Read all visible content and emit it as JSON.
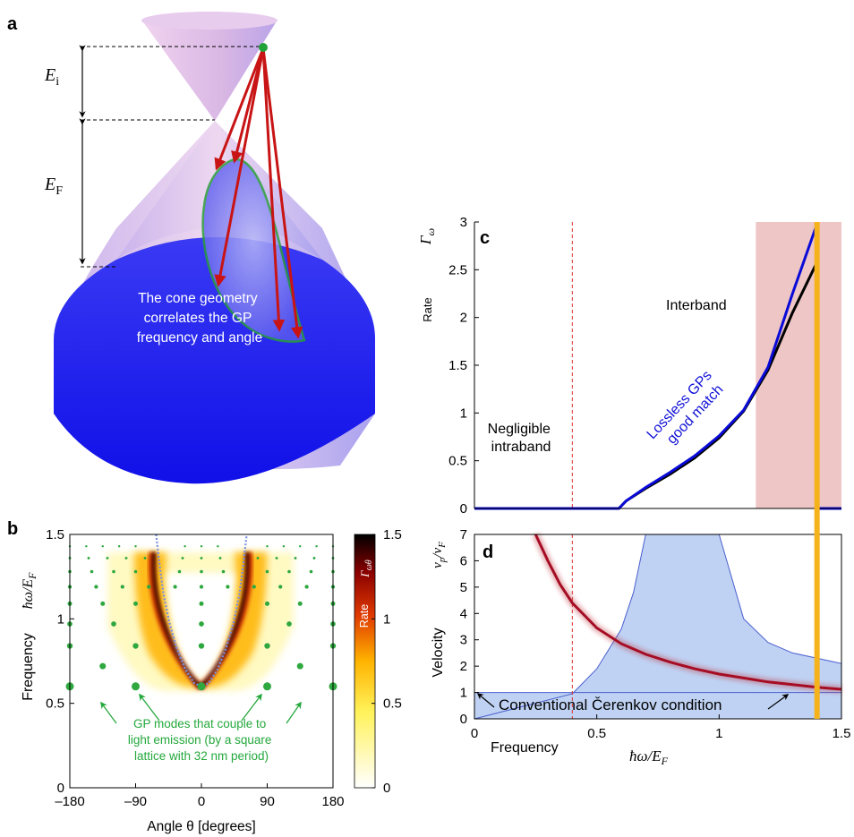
{
  "panel_labels": {
    "a": "a",
    "b": "b",
    "c": "c",
    "d": "d"
  },
  "panel_a": {
    "energy_initial": "E",
    "energy_initial_sub": "i",
    "energy_fermi": "E",
    "energy_fermi_sub": "F",
    "cone_text": [
      "The cone geometry",
      "correlates the GP",
      "frequency and angle"
    ],
    "colors": {
      "cone_upper": "#e7c9ea",
      "cone_lower": "#1c1cf0",
      "arrows": "#d01818",
      "ellipse": "#22a33a",
      "point": "#22a33a"
    }
  },
  "chart_data": [
    {
      "id": "b",
      "type": "heatmap",
      "title": "",
      "xlabel": "Angle θ [degrees]",
      "ylabel_top": "ħω/E",
      "ylabel_top_sub": "F",
      "ylabel_side": "Frequency",
      "xlim": [
        -180,
        180
      ],
      "ylim": [
        0,
        1.5
      ],
      "xticks": [
        -180,
        -90,
        0,
        90,
        180
      ],
      "xtick_labels": [
        "–180",
        "–90",
        "0",
        "90",
        "180"
      ],
      "yticks": [
        0,
        0.5,
        1,
        1.5
      ],
      "ytick_labels": [
        "0",
        "0.5",
        "1",
        "1.5"
      ],
      "colorbar": {
        "label": "Rate",
        "symbol": "Γ",
        "symbol_sub": "ωθ",
        "ticks": [
          0,
          0.5,
          1,
          1.5
        ],
        "tick_labels": [
          "0",
          "0.5",
          "1",
          "1.5"
        ],
        "colors": [
          "#ffffff",
          "#fff25a",
          "#ffb300",
          "#e03a00",
          "#8a0000",
          "#000000"
        ]
      },
      "annotation": [
        "GP modes that couple to",
        "light emission (by a square",
        "lattice with 32 nm period)"
      ],
      "annotation_color": "#24a83c",
      "curve": {
        "theta": [
          -62,
          -58,
          -52,
          -44,
          -34,
          -22,
          -10,
          0,
          10,
          22,
          34,
          44,
          52,
          58,
          62
        ],
        "freq": [
          1.5,
          1.35,
          1.15,
          0.98,
          0.83,
          0.7,
          0.62,
          0.6,
          0.62,
          0.7,
          0.83,
          0.98,
          1.15,
          1.35,
          1.5
        ]
      },
      "points_large": [
        {
          "theta": -180,
          "freq": 0.6
        },
        {
          "theta": -90,
          "freq": 0.6
        },
        {
          "theta": 0,
          "freq": 0.6
        },
        {
          "theta": 90,
          "freq": 0.6
        },
        {
          "theta": 180,
          "freq": 0.6
        },
        {
          "theta": -135,
          "freq": 0.72
        },
        {
          "theta": 135,
          "freq": 0.72
        }
      ]
    },
    {
      "id": "c",
      "type": "line",
      "title": "",
      "xlabel": "",
      "ylabel_symbol": "Γ",
      "ylabel_symbol_sub": "ω",
      "ylabel": "Rate",
      "xlim": [
        0,
        1.5
      ],
      "ylim": [
        0,
        3
      ],
      "yticks": [
        0,
        0.5,
        1,
        1.5,
        2,
        2.5,
        3
      ],
      "ytick_labels": [
        "0",
        "0.5",
        "1",
        "1.5",
        "2",
        "2.5",
        "3"
      ],
      "annotations": {
        "interband": "Interband",
        "intraband": [
          "Negligible",
          "intraband"
        ],
        "lossless": [
          "Lossless GPs",
          "good match"
        ]
      },
      "shaded_region": [
        1.15,
        1.5
      ],
      "dashed_line_x": 0.4,
      "vertical_line_x": 1.4,
      "series": [
        {
          "name": "",
          "color": "#0a0ad8",
          "x": [
            0,
            0.59,
            0.62,
            0.7,
            0.8,
            0.9,
            1.0,
            1.1,
            1.2,
            1.3,
            1.4,
            1.4,
            1.5
          ],
          "y": [
            0,
            0,
            0.08,
            0.22,
            0.38,
            0.55,
            0.76,
            1.03,
            1.48,
            2.25,
            2.98,
            0,
            0
          ]
        },
        {
          "name": "",
          "color": "#000000",
          "x": [
            0.59,
            0.62,
            0.7,
            0.8,
            0.9,
            1.0,
            1.1,
            1.2,
            1.3,
            1.4
          ],
          "y": [
            0,
            0.08,
            0.21,
            0.36,
            0.53,
            0.74,
            1.02,
            1.45,
            2.05,
            2.58
          ]
        }
      ]
    },
    {
      "id": "d",
      "type": "line",
      "title": "",
      "xlabel": "ħω/E",
      "xlabel_sub": "F",
      "xlabel_side": "Frequency",
      "ylabel_symbol": "v",
      "ylabel_symbol_sub": "p",
      "ylabel_symbol_den": "v",
      "ylabel_symbol_den_sub": "F",
      "ylabel": "Velocity",
      "xlim": [
        0,
        1.5
      ],
      "ylim": [
        0,
        7
      ],
      "xticks": [
        0,
        0.5,
        1,
        1.5
      ],
      "xtick_labels": [
        "0",
        "0.5",
        "1",
        "1.5"
      ],
      "yticks": [
        0,
        1,
        2,
        3,
        4,
        5,
        6,
        7
      ],
      "ytick_labels": [
        "0",
        "1",
        "2",
        "3",
        "4",
        "5",
        "6",
        "7"
      ],
      "annotation": "Conventional Čerenkov condition",
      "dashed_line_x": 0.4,
      "vertical_line_x": 1.4,
      "colors": {
        "region": "#a9c3ef",
        "region_edge": "#4a5fcf",
        "curve": "#b2112a",
        "vline": "#f5b21a",
        "dashed": "#e03030"
      },
      "series": [
        {
          "name": "",
          "x": [
            0.25,
            0.3,
            0.35,
            0.4,
            0.5,
            0.6,
            0.7,
            0.8,
            0.9,
            1.0,
            1.1,
            1.2,
            1.3,
            1.4,
            1.5
          ],
          "y": [
            7.0,
            6.0,
            5.1,
            4.4,
            3.45,
            2.85,
            2.45,
            2.15,
            1.9,
            1.7,
            1.55,
            1.4,
            1.3,
            1.2,
            1.12
          ]
        },
        {
          "name": "",
          "x": [
            0.0,
            0.4,
            0.5,
            0.6,
            0.65,
            0.7
          ],
          "y": [
            0.0,
            0.95,
            1.9,
            3.4,
            4.8,
            7.0
          ]
        },
        {
          "name": "",
          "x": [
            1.0,
            1.1,
            1.2,
            1.3,
            1.4,
            1.5
          ],
          "y": [
            7.0,
            3.8,
            2.9,
            2.5,
            2.3,
            2.1
          ]
        }
      ]
    }
  ]
}
